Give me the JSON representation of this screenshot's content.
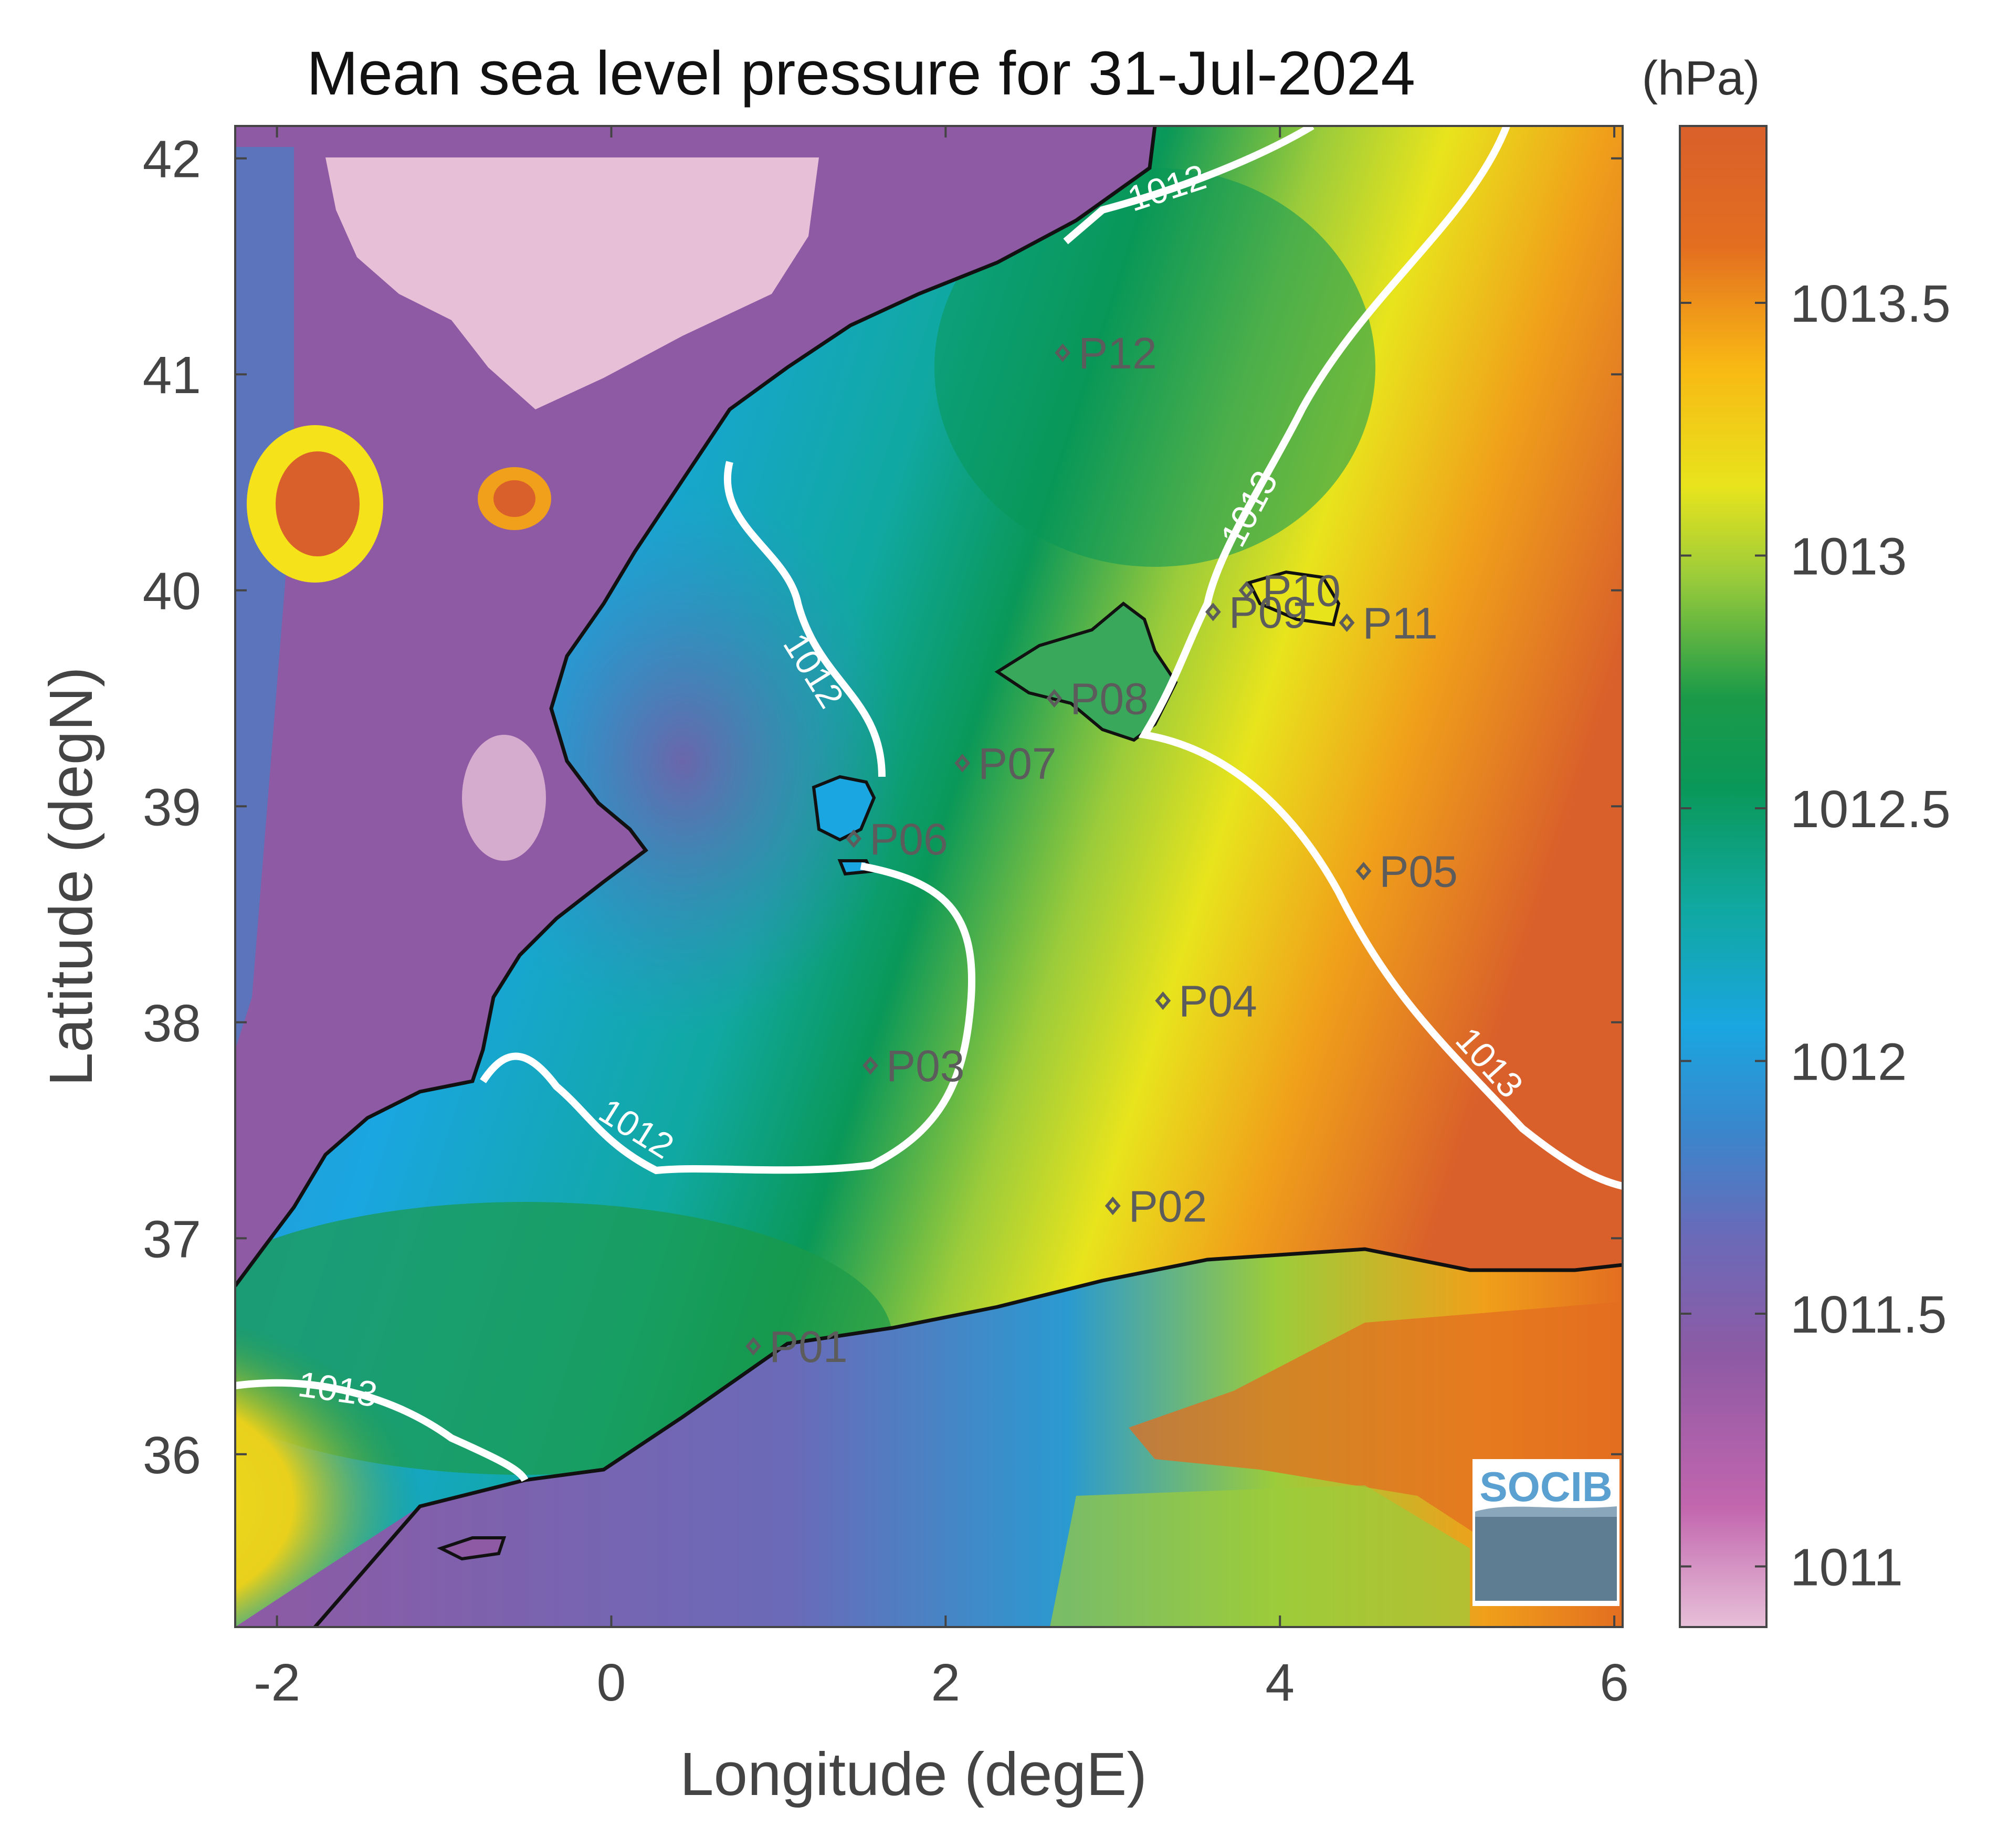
{
  "title": "Mean sea level pressure for 31-Jul-2024",
  "colorbar": {
    "unit": "(hPa)",
    "ticks": [
      "1013.5",
      "1013",
      "1012.5",
      "1012",
      "1011.5",
      "1011"
    ],
    "range": [
      1010.88,
      1013.85
    ],
    "colors": [
      "#e7c0d8",
      "#c266ae",
      "#8e5aa4",
      "#6a6ab8",
      "#3a86cc",
      "#1aa6e0",
      "#10a8a0",
      "#0a9858",
      "#1b9a48",
      "#9ccc3a",
      "#e8e41c",
      "#f8b814",
      "#e36e20",
      "#d9602a"
    ]
  },
  "axes": {
    "xlabel": "Longitude (degE)",
    "ylabel": "Latitude (degN)",
    "xticks": [
      "-2",
      "0",
      "2",
      "4",
      "6"
    ],
    "yticks": [
      "42",
      "41",
      "40",
      "39",
      "38",
      "37",
      "36"
    ],
    "xlim": [
      -2.25,
      6.05
    ],
    "ylim": [
      35.2,
      42.15
    ]
  },
  "contours": [
    {
      "level": "1012",
      "labels": [
        "1012",
        "1012",
        "1012"
      ]
    },
    {
      "level": "1013",
      "labels": [
        "1013",
        "1013",
        "1013"
      ]
    }
  ],
  "stations": [
    {
      "label": "P01",
      "lon": 0.85,
      "lat": 36.5
    },
    {
      "label": "P02",
      "lon": 3.0,
      "lat": 37.15
    },
    {
      "label": "P03",
      "lon": 1.55,
      "lat": 37.8
    },
    {
      "label": "P04",
      "lon": 3.3,
      "lat": 38.1
    },
    {
      "label": "P05",
      "lon": 4.5,
      "lat": 38.7
    },
    {
      "label": "P06",
      "lon": 1.45,
      "lat": 38.85
    },
    {
      "label": "P07",
      "lon": 2.1,
      "lat": 39.2
    },
    {
      "label": "P08",
      "lon": 2.65,
      "lat": 39.5
    },
    {
      "label": "P09",
      "lon": 3.6,
      "lat": 39.9
    },
    {
      "label": "P10",
      "lon": 3.8,
      "lat": 40.0
    },
    {
      "label": "P11",
      "lon": 4.4,
      "lat": 39.85
    },
    {
      "label": "P12",
      "lon": 2.7,
      "lat": 41.1
    }
  ],
  "logo": {
    "text": "SOCIB"
  }
}
